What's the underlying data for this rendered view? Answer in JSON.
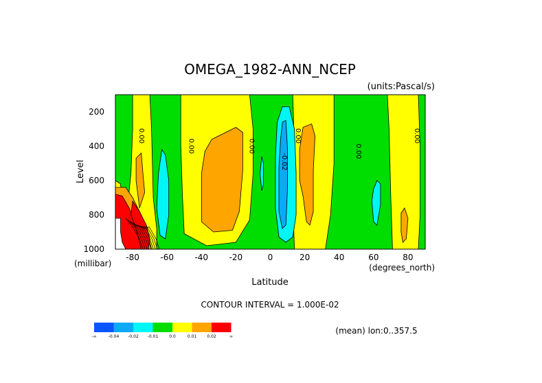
{
  "chart_data": {
    "type": "contour",
    "title": "OMEGA_1982-ANN_NCEP",
    "units": "(units:Pascal/s)",
    "xlabel": "Latitude",
    "ylabel": "Level",
    "x_unit_label": "(degrees_north)",
    "y_unit_label": "(millibar)",
    "xlim": [
      -90,
      90
    ],
    "ylim": [
      1000,
      100
    ],
    "x_ticks": [
      -80,
      -60,
      -40,
      -20,
      0,
      20,
      40,
      60,
      80
    ],
    "x_tick_labels": [
      "-80",
      "-60",
      "-40",
      "-20",
      "0",
      "20",
      "40",
      "60",
      "80"
    ],
    "y_ticks": [
      200,
      400,
      600,
      800,
      1000
    ],
    "y_tick_labels": [
      "200",
      "400",
      "600",
      "800",
      "1000"
    ],
    "contour_interval_text": "CONTOUR INTERVAL = 1.000E-02",
    "mean_text": "(mean) lon:0..357.5",
    "contour_labels": [
      {
        "text": "0.00",
        "lat": -76,
        "lev": 340
      },
      {
        "text": "0.00",
        "lat": -47,
        "lev": 400
      },
      {
        "text": "0.00",
        "lat": -12,
        "lev": 400
      },
      {
        "text": "0.00",
        "lat": 15,
        "lev": 340
      },
      {
        "text": "0.00",
        "lat": 50,
        "lev": 430
      },
      {
        "text": "0.00",
        "lat": 84,
        "lev": 340
      },
      {
        "text": "-0.02",
        "lat": 7,
        "lev": 490
      }
    ],
    "colorbar": {
      "colors": [
        "#0a55ff",
        "#0aaaf5",
        "#00f5f5",
        "#00dd00",
        "#ffff00",
        "#ffa500",
        "#ff0000"
      ],
      "labels": [
        "-∞",
        "-0.04",
        "-0.02",
        "-0.01",
        "0.0",
        "0.01",
        "0.02",
        "∞"
      ]
    },
    "regions": {
      "background_color": "#00dd00",
      "positive_bands": [
        {
          "level": "0.0 to 0.01",
          "color": "#ffff00",
          "lat_range": [
            -80,
            -66
          ],
          "lev_range": [
            100,
            1000
          ]
        },
        {
          "level": "0.0 to 0.01",
          "color": "#ffff00",
          "lat_range": [
            -52,
            -10
          ],
          "lev_range": [
            100,
            980
          ]
        },
        {
          "level": "0.0 to 0.01",
          "color": "#ffff00",
          "lat_range": [
            13,
            37
          ],
          "lev_range": [
            100,
            1000
          ]
        },
        {
          "level": "0.0 to 0.01",
          "color": "#ffff00",
          "lat_range": [
            68,
            87
          ],
          "lev_range": [
            100,
            1000
          ]
        },
        {
          "level": "0.01 to 0.02",
          "color": "#ffa500",
          "lat_range": [
            -40,
            -16
          ],
          "lev_range": [
            280,
            900
          ]
        },
        {
          "level": "0.01 to 0.02",
          "color": "#ffa500",
          "lat_range": [
            17,
            26
          ],
          "lev_range": [
            280,
            870
          ]
        },
        {
          "level": "0.01 to 0.02",
          "color": "#ffa500",
          "lat_range": [
            76,
            80
          ],
          "lev_range": [
            760,
            960
          ]
        }
      ],
      "negative_bands": [
        {
          "level": "-0.02 to -0.01",
          "color": "#00f5f5",
          "lat_range": [
            3,
            15
          ],
          "lev_range": [
            160,
            950
          ]
        },
        {
          "level": "-0.04 to -0.02",
          "color": "#0aaaf5",
          "lat_range": [
            5,
            10
          ],
          "lev_range": [
            260,
            880
          ]
        },
        {
          "level": "-0.02 to -0.01",
          "color": "#00f5f5",
          "lat_range": [
            -66,
            -59
          ],
          "lev_range": [
            420,
            930
          ]
        },
        {
          "level": "-0.02 to -0.01",
          "color": "#00f5f5",
          "lat_range": [
            59,
            64
          ],
          "lev_range": [
            600,
            860
          ]
        }
      ]
    }
  }
}
